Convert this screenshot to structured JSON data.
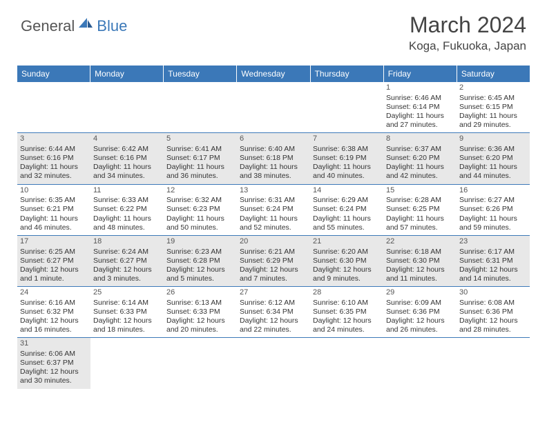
{
  "logo": {
    "general": "General",
    "blue": "Blue"
  },
  "title": "March 2024",
  "location": "Koga, Fukuoka, Japan",
  "colors": {
    "header_bg": "#3b78b8",
    "alt_bg": "#e8e8e8",
    "text": "#333333",
    "border": "#3b78b8"
  },
  "day_headers": [
    "Sunday",
    "Monday",
    "Tuesday",
    "Wednesday",
    "Thursday",
    "Friday",
    "Saturday"
  ],
  "weeks": [
    [
      {
        "empty": true
      },
      {
        "empty": true
      },
      {
        "empty": true
      },
      {
        "empty": true
      },
      {
        "empty": true
      },
      {
        "day": "1",
        "sunrise": "Sunrise: 6:46 AM",
        "sunset": "Sunset: 6:14 PM",
        "daylight": "Daylight: 11 hours and 27 minutes."
      },
      {
        "day": "2",
        "sunrise": "Sunrise: 6:45 AM",
        "sunset": "Sunset: 6:15 PM",
        "daylight": "Daylight: 11 hours and 29 minutes."
      }
    ],
    [
      {
        "day": "3",
        "alt": true,
        "sunrise": "Sunrise: 6:44 AM",
        "sunset": "Sunset: 6:16 PM",
        "daylight": "Daylight: 11 hours and 32 minutes."
      },
      {
        "day": "4",
        "alt": true,
        "sunrise": "Sunrise: 6:42 AM",
        "sunset": "Sunset: 6:16 PM",
        "daylight": "Daylight: 11 hours and 34 minutes."
      },
      {
        "day": "5",
        "alt": true,
        "sunrise": "Sunrise: 6:41 AM",
        "sunset": "Sunset: 6:17 PM",
        "daylight": "Daylight: 11 hours and 36 minutes."
      },
      {
        "day": "6",
        "alt": true,
        "sunrise": "Sunrise: 6:40 AM",
        "sunset": "Sunset: 6:18 PM",
        "daylight": "Daylight: 11 hours and 38 minutes."
      },
      {
        "day": "7",
        "alt": true,
        "sunrise": "Sunrise: 6:38 AM",
        "sunset": "Sunset: 6:19 PM",
        "daylight": "Daylight: 11 hours and 40 minutes."
      },
      {
        "day": "8",
        "alt": true,
        "sunrise": "Sunrise: 6:37 AM",
        "sunset": "Sunset: 6:20 PM",
        "daylight": "Daylight: 11 hours and 42 minutes."
      },
      {
        "day": "9",
        "alt": true,
        "sunrise": "Sunrise: 6:36 AM",
        "sunset": "Sunset: 6:20 PM",
        "daylight": "Daylight: 11 hours and 44 minutes."
      }
    ],
    [
      {
        "day": "10",
        "sunrise": "Sunrise: 6:35 AM",
        "sunset": "Sunset: 6:21 PM",
        "daylight": "Daylight: 11 hours and 46 minutes."
      },
      {
        "day": "11",
        "sunrise": "Sunrise: 6:33 AM",
        "sunset": "Sunset: 6:22 PM",
        "daylight": "Daylight: 11 hours and 48 minutes."
      },
      {
        "day": "12",
        "sunrise": "Sunrise: 6:32 AM",
        "sunset": "Sunset: 6:23 PM",
        "daylight": "Daylight: 11 hours and 50 minutes."
      },
      {
        "day": "13",
        "sunrise": "Sunrise: 6:31 AM",
        "sunset": "Sunset: 6:24 PM",
        "daylight": "Daylight: 11 hours and 52 minutes."
      },
      {
        "day": "14",
        "sunrise": "Sunrise: 6:29 AM",
        "sunset": "Sunset: 6:24 PM",
        "daylight": "Daylight: 11 hours and 55 minutes."
      },
      {
        "day": "15",
        "sunrise": "Sunrise: 6:28 AM",
        "sunset": "Sunset: 6:25 PM",
        "daylight": "Daylight: 11 hours and 57 minutes."
      },
      {
        "day": "16",
        "sunrise": "Sunrise: 6:27 AM",
        "sunset": "Sunset: 6:26 PM",
        "daylight": "Daylight: 11 hours and 59 minutes."
      }
    ],
    [
      {
        "day": "17",
        "alt": true,
        "sunrise": "Sunrise: 6:25 AM",
        "sunset": "Sunset: 6:27 PM",
        "daylight": "Daylight: 12 hours and 1 minute."
      },
      {
        "day": "18",
        "alt": true,
        "sunrise": "Sunrise: 6:24 AM",
        "sunset": "Sunset: 6:27 PM",
        "daylight": "Daylight: 12 hours and 3 minutes."
      },
      {
        "day": "19",
        "alt": true,
        "sunrise": "Sunrise: 6:23 AM",
        "sunset": "Sunset: 6:28 PM",
        "daylight": "Daylight: 12 hours and 5 minutes."
      },
      {
        "day": "20",
        "alt": true,
        "sunrise": "Sunrise: 6:21 AM",
        "sunset": "Sunset: 6:29 PM",
        "daylight": "Daylight: 12 hours and 7 minutes."
      },
      {
        "day": "21",
        "alt": true,
        "sunrise": "Sunrise: 6:20 AM",
        "sunset": "Sunset: 6:30 PM",
        "daylight": "Daylight: 12 hours and 9 minutes."
      },
      {
        "day": "22",
        "alt": true,
        "sunrise": "Sunrise: 6:18 AM",
        "sunset": "Sunset: 6:30 PM",
        "daylight": "Daylight: 12 hours and 11 minutes."
      },
      {
        "day": "23",
        "alt": true,
        "sunrise": "Sunrise: 6:17 AM",
        "sunset": "Sunset: 6:31 PM",
        "daylight": "Daylight: 12 hours and 14 minutes."
      }
    ],
    [
      {
        "day": "24",
        "sunrise": "Sunrise: 6:16 AM",
        "sunset": "Sunset: 6:32 PM",
        "daylight": "Daylight: 12 hours and 16 minutes."
      },
      {
        "day": "25",
        "sunrise": "Sunrise: 6:14 AM",
        "sunset": "Sunset: 6:33 PM",
        "daylight": "Daylight: 12 hours and 18 minutes."
      },
      {
        "day": "26",
        "sunrise": "Sunrise: 6:13 AM",
        "sunset": "Sunset: 6:33 PM",
        "daylight": "Daylight: 12 hours and 20 minutes."
      },
      {
        "day": "27",
        "sunrise": "Sunrise: 6:12 AM",
        "sunset": "Sunset: 6:34 PM",
        "daylight": "Daylight: 12 hours and 22 minutes."
      },
      {
        "day": "28",
        "sunrise": "Sunrise: 6:10 AM",
        "sunset": "Sunset: 6:35 PM",
        "daylight": "Daylight: 12 hours and 24 minutes."
      },
      {
        "day": "29",
        "sunrise": "Sunrise: 6:09 AM",
        "sunset": "Sunset: 6:36 PM",
        "daylight": "Daylight: 12 hours and 26 minutes."
      },
      {
        "day": "30",
        "sunrise": "Sunrise: 6:08 AM",
        "sunset": "Sunset: 6:36 PM",
        "daylight": "Daylight: 12 hours and 28 minutes."
      }
    ],
    [
      {
        "day": "31",
        "alt": true,
        "sunrise": "Sunrise: 6:06 AM",
        "sunset": "Sunset: 6:37 PM",
        "daylight": "Daylight: 12 hours and 30 minutes."
      },
      {
        "empty": true
      },
      {
        "empty": true
      },
      {
        "empty": true
      },
      {
        "empty": true
      },
      {
        "empty": true
      },
      {
        "empty": true
      }
    ]
  ]
}
